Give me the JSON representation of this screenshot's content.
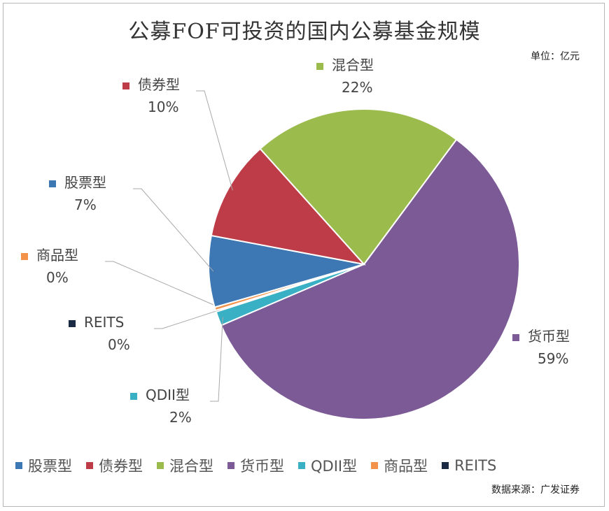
{
  "chart_data": {
    "type": "pie",
    "title": "公募FOF可投资的国内公募基金规模",
    "unit_note": "单位：亿元",
    "source_note": "数据来源：广发证券",
    "legend_position": "bottom",
    "slices": [
      {
        "name": "货币型",
        "percent": "59%",
        "value": 59,
        "color": "#7b5a96"
      },
      {
        "name": "QDII型",
        "percent": "2%",
        "value": 1.5,
        "color": "#3ab0c5"
      },
      {
        "name": "REITS",
        "percent": "0%",
        "value": 0.15,
        "color": "#1a2a44"
      },
      {
        "name": "商品型",
        "percent": "0%",
        "value": 0.35,
        "color": "#f3934a"
      },
      {
        "name": "股票型",
        "percent": "7%",
        "value": 7.5,
        "color": "#3d78b4"
      },
      {
        "name": "债券型",
        "percent": "10%",
        "value": 10.5,
        "color": "#be3b48"
      },
      {
        "name": "混合型",
        "percent": "22%",
        "value": 22,
        "color": "#9cbb4d"
      }
    ],
    "legend": [
      {
        "name": "股票型",
        "color": "#3d78b4"
      },
      {
        "name": "债券型",
        "color": "#be3b48"
      },
      {
        "name": "混合型",
        "color": "#9cbb4d"
      },
      {
        "name": "货币型",
        "color": "#7b5a96"
      },
      {
        "name": "QDII型",
        "color": "#3ab0c5"
      },
      {
        "name": "商品型",
        "color": "#f3934a"
      },
      {
        "name": "REITS",
        "color": "#1a2a44"
      }
    ]
  }
}
